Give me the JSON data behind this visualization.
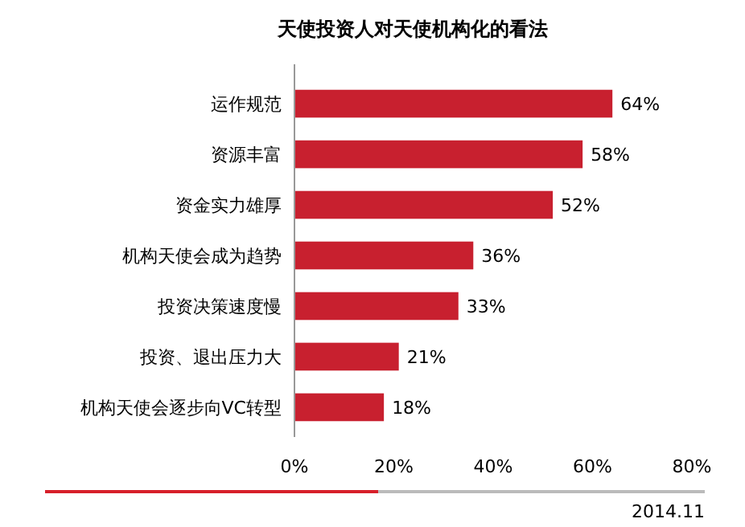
{
  "chart_data": {
    "type": "bar",
    "orientation": "horizontal",
    "title": "天使投资人对天使机构化的看法",
    "categories": [
      "运作规范",
      "资源丰富",
      "资金实力雄厚",
      "机构天使会成为趋势",
      "投资决策速度慢",
      "投资、退出压力大",
      "机构天使会逐步向VC转型"
    ],
    "values": [
      64,
      58,
      52,
      36,
      33,
      21,
      18
    ],
    "value_labels": [
      "64%",
      "58%",
      "52%",
      "36%",
      "33%",
      "21%",
      "18%"
    ],
    "color": "#c8202f",
    "xlim": [
      0,
      80
    ],
    "xticks": [
      {
        "value": 0,
        "label": "0%"
      },
      {
        "value": 20,
        "label": "20%"
      },
      {
        "value": 40,
        "label": "40%"
      },
      {
        "value": 60,
        "label": "60%"
      },
      {
        "value": 80,
        "label": "80%"
      }
    ],
    "grid": false,
    "annotations": [
      "2014.11"
    ]
  }
}
